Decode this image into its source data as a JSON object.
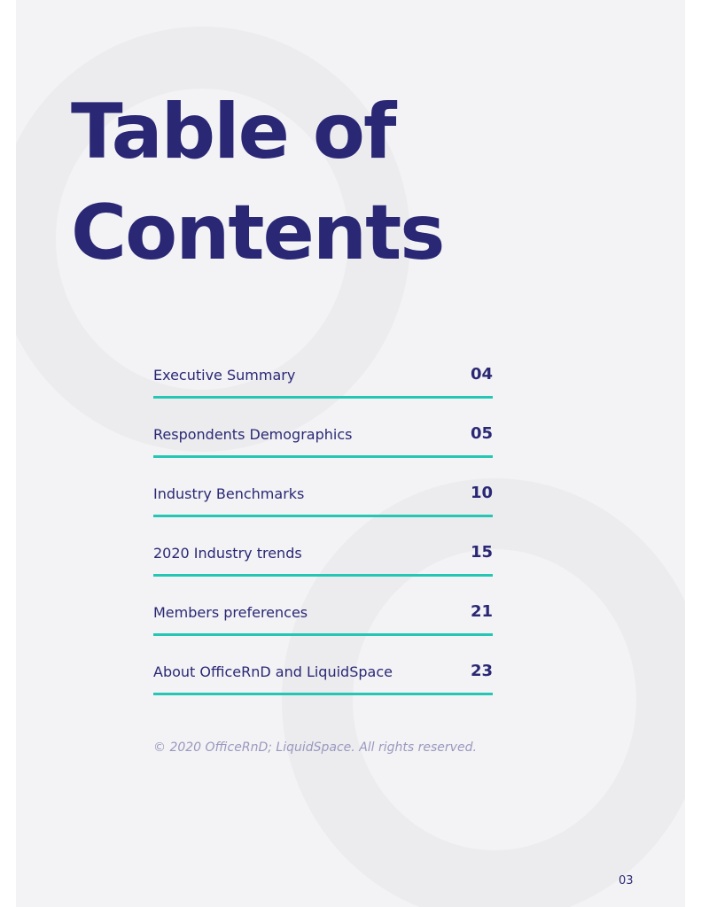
{
  "title_lines": [
    "Table of",
    "Contents"
  ],
  "toc": [
    {
      "label": "Executive Summary",
      "page": "04"
    },
    {
      "label": "Respondents Demographics",
      "page": "05"
    },
    {
      "label": "Industry Benchmarks",
      "page": "10"
    },
    {
      "label": "2020 Industry trends",
      "page": "15"
    },
    {
      "label": "Members preferences",
      "page": "21"
    },
    {
      "label": "About OfficeRnD and LiquidSpace",
      "page": "23"
    }
  ],
  "copyright": "© 2020 OfficeRnD; LiquidSpace. All rights reserved.",
  "page_number": "03",
  "colors": {
    "title": "#2a2875",
    "rule": "#25c7b4",
    "background": "#f3f3f5",
    "copyright": "#9a98be"
  }
}
